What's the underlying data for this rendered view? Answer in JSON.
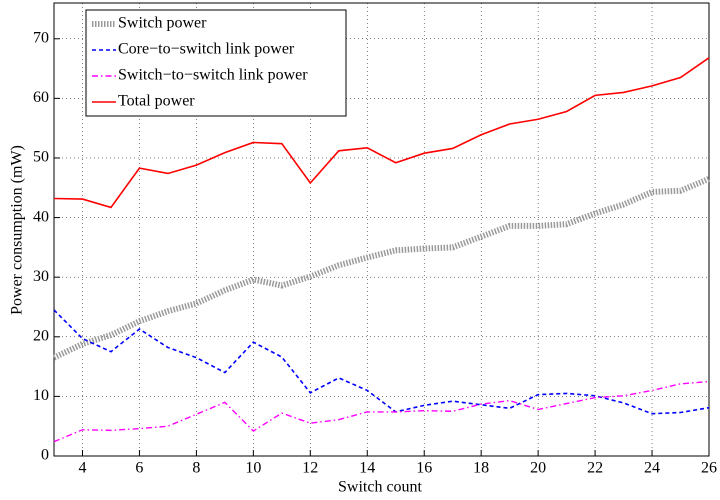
{
  "chart_data": {
    "type": "line",
    "xlabel": "Switch count",
    "ylabel": "Power consumption (mW)",
    "x": [
      3,
      4,
      5,
      6,
      7,
      8,
      9,
      10,
      11,
      12,
      13,
      14,
      15,
      16,
      17,
      18,
      19,
      20,
      21,
      22,
      23,
      24,
      25,
      26
    ],
    "series": [
      {
        "name": "Switch power",
        "color": "#9a9a9a",
        "style": "dotted-thick",
        "values": [
          16.5,
          18.8,
          20.3,
          22.6,
          24.3,
          25.6,
          27.8,
          29.6,
          28.6,
          30.1,
          32.0,
          33.3,
          34.5,
          34.8,
          35.0,
          36.8,
          38.6,
          38.6,
          38.9,
          40.7,
          42.2,
          44.3,
          44.5,
          46.5
        ]
      },
      {
        "name": "Core−to−switch link power",
        "color": "#0000ff",
        "style": "dashed",
        "values": [
          24.5,
          19.7,
          17.5,
          21.3,
          18.2,
          16.5,
          14.0,
          19.1,
          16.6,
          10.6,
          13.1,
          11.0,
          7.4,
          8.5,
          9.2,
          8.6,
          8.0,
          10.3,
          10.5,
          10.1,
          8.9,
          7.1,
          7.3,
          8.1
        ]
      },
      {
        "name": "Switch−to−switch link power",
        "color": "#ff00ff",
        "style": "dashdot",
        "values": [
          2.4,
          4.4,
          4.3,
          4.6,
          5.0,
          7.0,
          9.0,
          4.2,
          7.2,
          5.5,
          6.1,
          7.4,
          7.4,
          7.6,
          7.5,
          8.7,
          9.3,
          7.8,
          8.8,
          9.8,
          10.1,
          11.0,
          12.1,
          12.5
        ]
      },
      {
        "name": "Total power",
        "color": "#ff0000",
        "style": "solid",
        "values": [
          43.2,
          43.1,
          41.7,
          48.3,
          47.4,
          48.8,
          50.9,
          52.6,
          52.4,
          45.8,
          51.2,
          51.7,
          49.2,
          50.8,
          51.6,
          53.9,
          55.7,
          56.5,
          57.8,
          60.5,
          61.0,
          62.1,
          63.5,
          66.8
        ]
      }
    ],
    "xlim": [
      3,
      26
    ],
    "xticks": [
      4,
      6,
      8,
      10,
      12,
      14,
      16,
      18,
      20,
      22,
      24,
      26
    ],
    "ylim": [
      0,
      76
    ],
    "yticks": [
      0,
      10,
      20,
      30,
      40,
      50,
      60,
      70
    ],
    "grid": true,
    "legend": "upper-left"
  }
}
